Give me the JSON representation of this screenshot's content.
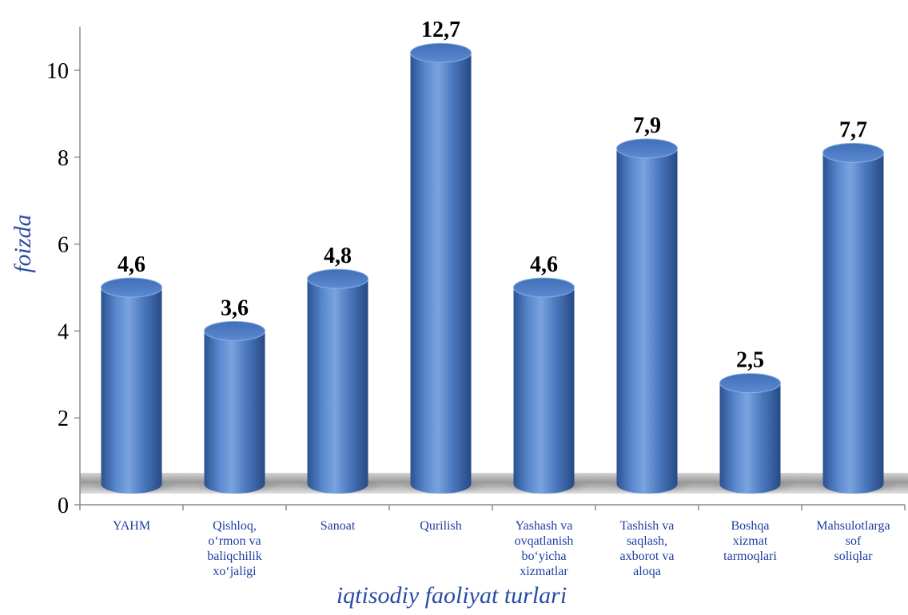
{
  "chart_data": {
    "type": "bar",
    "style": "3d-cylinder",
    "categories": [
      "YAHM",
      "Qishloq, o‘rmon va baliqchilik xo‘jaligi",
      "Sanoat",
      "Qurilish",
      "Yashash va ovqatlanish bo‘yicha xizmatlar",
      "Tashish va saqlash, axborot va aloqa",
      "Boshqa xizmat tarmoqlari",
      "Mahsulotlarga sof soliqlar"
    ],
    "category_lines": [
      [
        "YAHM"
      ],
      [
        "Qishloq,",
        "o‘rmon va",
        "baliqchilik",
        "xo‘jaligi"
      ],
      [
        "Sanoat"
      ],
      [
        "Qurilish"
      ],
      [
        "Yashash va",
        "ovqatlanish",
        "bo‘yicha",
        "xizmatlar"
      ],
      [
        "Tashish va",
        "saqlash,",
        "axborot va",
        "aloqa"
      ],
      [
        "Boshqa",
        "xizmat",
        "tarmoqlari"
      ],
      [
        "Mahsulotlarga",
        "sof",
        "soliqlar"
      ]
    ],
    "values": [
      4.6,
      3.6,
      4.8,
      12.7,
      4.6,
      7.9,
      2.5,
      7.7
    ],
    "bar_tops": [
      5.0,
      4.0,
      5.2,
      10.4,
      5.0,
      8.2,
      2.8,
      8.1
    ],
    "data_labels": [
      "4,6",
      "3,6",
      "4,8",
      "12,7",
      "4,6",
      "7,9",
      "2,5",
      "7,7"
    ],
    "xlabel": "iqtisodiy faoliyat turlari",
    "ylabel": "foizda",
    "ylim": [
      0,
      11
    ],
    "yticks": [
      0,
      2,
      4,
      6,
      8,
      10
    ],
    "ytick_labels": [
      "0",
      "2",
      "4",
      "6",
      "8",
      "10"
    ],
    "grid": false,
    "legend": "none",
    "colors": {
      "bar": "#4a78c0",
      "bar_dark": "#2a4f8f",
      "bar_light": "#7ea4de",
      "category_text": "#1f3da0",
      "axis_title": "#2a4aa8"
    }
  }
}
